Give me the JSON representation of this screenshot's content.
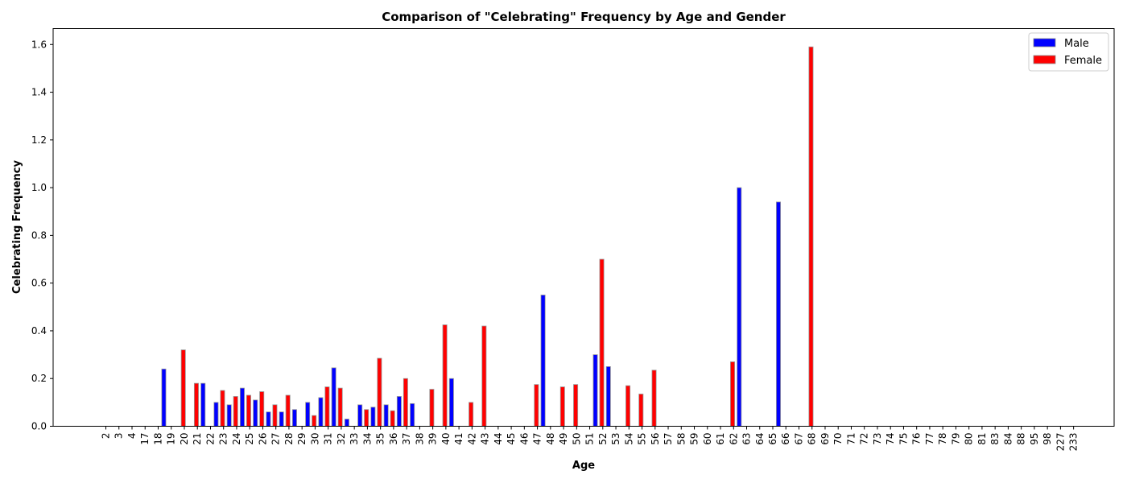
{
  "chart_data": {
    "type": "bar",
    "title": "Comparison of \"Celebrating\" Frequency by Age and Gender",
    "xlabel": "Age",
    "ylabel": "Celebrating Frequency",
    "ylim": [
      0,
      1.6667
    ],
    "yticks": [
      "0.0",
      "0.2",
      "0.4",
      "0.6",
      "0.8",
      "1.0",
      "1.2",
      "1.4",
      "1.6"
    ],
    "grid": false,
    "legend_position": "top-right",
    "categories": [
      "2",
      "3",
      "4",
      "17",
      "18",
      "19",
      "20",
      "21",
      "22",
      "23",
      "24",
      "25",
      "26",
      "27",
      "28",
      "29",
      "30",
      "31",
      "32",
      "33",
      "34",
      "35",
      "36",
      "37",
      "38",
      "39",
      "40",
      "41",
      "42",
      "43",
      "44",
      "45",
      "46",
      "47",
      "48",
      "49",
      "50",
      "51",
      "52",
      "53",
      "54",
      "55",
      "56",
      "57",
      "58",
      "59",
      "60",
      "61",
      "62",
      "63",
      "64",
      "65",
      "66",
      "67",
      "68",
      "69",
      "70",
      "71",
      "72",
      "73",
      "74",
      "75",
      "76",
      "77",
      "78",
      "79",
      "80",
      "81",
      "83",
      "84",
      "88",
      "95",
      "98",
      "227",
      "233"
    ],
    "series": [
      {
        "name": "Male",
        "color": "#0000ff",
        "values": [
          0,
          0,
          0,
          0,
          0.24,
          0,
          0,
          0.18,
          0.1,
          0.09,
          0.16,
          0.11,
          0.06,
          0.06,
          0.07,
          0.1,
          0.12,
          0.245,
          0.03,
          0.09,
          0.08,
          0.09,
          0.125,
          0.095,
          0,
          0,
          0.2,
          0,
          0,
          0,
          0,
          0,
          0,
          0.55,
          0,
          0,
          0,
          0.3,
          0.25,
          0,
          0,
          0,
          0,
          0,
          0,
          0,
          0,
          0,
          1.0,
          0,
          0,
          0.94,
          0,
          0,
          0,
          0,
          0,
          0,
          0,
          0,
          0,
          0,
          0,
          0,
          0,
          0,
          0,
          0,
          0,
          0,
          0,
          0,
          0,
          0,
          0
        ]
      },
      {
        "name": "Female",
        "color": "#ff0000",
        "values": [
          0,
          0,
          0,
          0,
          0,
          0.32,
          0.18,
          0,
          0.15,
          0.125,
          0.13,
          0.145,
          0.09,
          0.13,
          0,
          0.045,
          0.165,
          0.16,
          0,
          0.07,
          0.285,
          0.065,
          0.2,
          0,
          0.155,
          0.425,
          0,
          0.1,
          0.42,
          0,
          0,
          0,
          0.175,
          0,
          0.165,
          0.175,
          0,
          0.7,
          0,
          0.17,
          0.135,
          0.235,
          0,
          0,
          0,
          0,
          0,
          0.27,
          0,
          0,
          0,
          0,
          0,
          1.59,
          0,
          0,
          0,
          0,
          0,
          0,
          0,
          0,
          0,
          0,
          0,
          0,
          0,
          0,
          0,
          0,
          0,
          0,
          0,
          0,
          0
        ]
      }
    ]
  }
}
